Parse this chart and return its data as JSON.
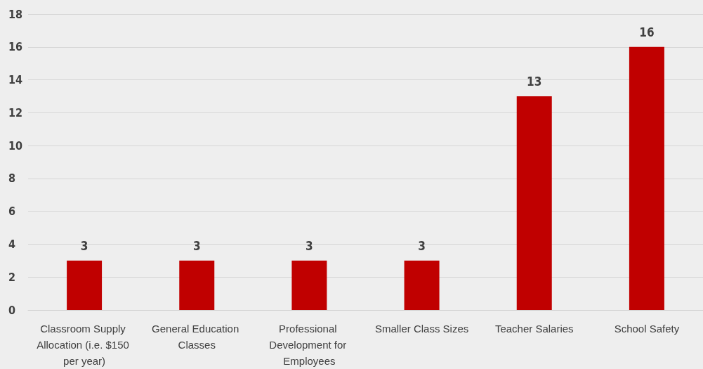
{
  "chart_data": {
    "type": "bar",
    "categories": [
      "Classroom Supply Allocation (i.e. $150 per year)",
      "General Education Classes",
      "Professional Development for Employees",
      "Smaller Class Sizes",
      "Teacher Salaries",
      "School Safety"
    ],
    "values": [
      3,
      3,
      3,
      3,
      13,
      16
    ],
    "color": "#c00000",
    "ylim": [
      0,
      18
    ],
    "yticks": [
      0,
      2,
      4,
      6,
      8,
      10,
      12,
      14,
      16,
      18
    ],
    "grid": "y",
    "data_labels": true
  }
}
